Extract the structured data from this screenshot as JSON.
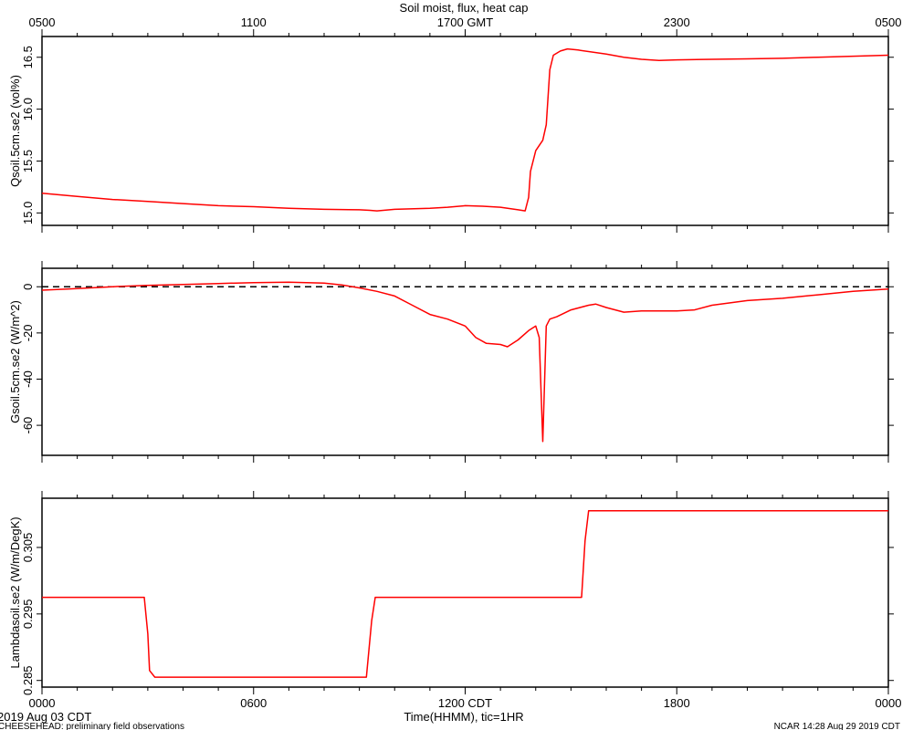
{
  "title": "Soil moist, flux, heat cap",
  "colors": {
    "series": "#ff0000",
    "axis": "#000000",
    "zero_line": "#000000"
  },
  "chart_data": {
    "type": "line",
    "x_top_ticks": [
      "0500",
      "1100",
      "1700 GMT",
      "2300",
      "0500"
    ],
    "x_bottom_ticks": [
      "0000",
      "0600",
      "1200 CDT",
      "1800",
      "0000"
    ],
    "x_label": "Time(HHMM), tic=1HR",
    "x_range_hours": [
      0,
      24
    ],
    "panels": [
      {
        "ylabel": "Qsoil.5cm.se2 (vol%)",
        "ylim": [
          14.88,
          16.7
        ],
        "yticks": [
          "15.0",
          "15.5",
          "16.0",
          "16.5"
        ],
        "ytick_values": [
          15.0,
          15.5,
          16.0,
          16.5
        ],
        "series": [
          {
            "values": [
              [
                0,
                15.19
              ],
              [
                1,
                15.16
              ],
              [
                2,
                15.13
              ],
              [
                3,
                15.11
              ],
              [
                4,
                15.09
              ],
              [
                5,
                15.07
              ],
              [
                6,
                15.06
              ],
              [
                7,
                15.045
              ],
              [
                8,
                15.035
              ],
              [
                9,
                15.03
              ],
              [
                9.3,
                15.025
              ],
              [
                9.5,
                15.02
              ],
              [
                10,
                15.035
              ],
              [
                11,
                15.045
              ],
              [
                11.5,
                15.055
              ],
              [
                12,
                15.07
              ],
              [
                12.5,
                15.065
              ],
              [
                13,
                15.055
              ],
              [
                13.5,
                15.03
              ],
              [
                13.7,
                15.02
              ],
              [
                13.8,
                15.15
              ],
              [
                13.85,
                15.4
              ],
              [
                14,
                15.6
              ],
              [
                14.2,
                15.7
              ],
              [
                14.3,
                15.85
              ],
              [
                14.4,
                16.38
              ],
              [
                14.5,
                16.52
              ],
              [
                14.7,
                16.56
              ],
              [
                14.9,
                16.58
              ],
              [
                15.2,
                16.57
              ],
              [
                16,
                16.53
              ],
              [
                16.5,
                16.5
              ],
              [
                17,
                16.48
              ],
              [
                17.5,
                16.47
              ],
              [
                18,
                16.475
              ],
              [
                19,
                16.48
              ],
              [
                20,
                16.485
              ],
              [
                21,
                16.49
              ],
              [
                22,
                16.5
              ],
              [
                23,
                16.51
              ],
              [
                24,
                16.52
              ]
            ]
          }
        ]
      },
      {
        "ylabel": "Gsoil.5cm.se2 (W/m^2)",
        "ylim": [
          -73,
          8
        ],
        "yticks": [
          "0",
          "-20",
          "-40",
          "-60"
        ],
        "ytick_values": [
          0,
          -20,
          -40,
          -60
        ],
        "zero_line": true,
        "series": [
          {
            "values": [
              [
                0,
                -1.5
              ],
              [
                1,
                -0.8
              ],
              [
                2,
                0
              ],
              [
                3,
                0.6
              ],
              [
                4,
                1.0
              ],
              [
                5,
                1.4
              ],
              [
                6,
                1.8
              ],
              [
                7,
                2.0
              ],
              [
                8,
                1.6
              ],
              [
                8.5,
                0.8
              ],
              [
                9,
                -0.5
              ],
              [
                9.5,
                -2
              ],
              [
                10,
                -4
              ],
              [
                10.5,
                -8
              ],
              [
                11,
                -12
              ],
              [
                11.5,
                -14
              ],
              [
                12,
                -17
              ],
              [
                12.3,
                -22
              ],
              [
                12.6,
                -24.5
              ],
              [
                13,
                -25
              ],
              [
                13.2,
                -26
              ],
              [
                13.5,
                -23
              ],
              [
                13.8,
                -19
              ],
              [
                14,
                -17
              ],
              [
                14.1,
                -22
              ],
              [
                14.2,
                -67
              ],
              [
                14.3,
                -17
              ],
              [
                14.4,
                -14
              ],
              [
                14.6,
                -13
              ],
              [
                15,
                -10
              ],
              [
                15.5,
                -8
              ],
              [
                15.7,
                -7.5
              ],
              [
                16,
                -9
              ],
              [
                16.5,
                -11
              ],
              [
                17,
                -10.5
              ],
              [
                18,
                -10.5
              ],
              [
                18.5,
                -10
              ],
              [
                19,
                -8
              ],
              [
                20,
                -6
              ],
              [
                21,
                -5
              ],
              [
                22,
                -3.5
              ],
              [
                23,
                -2
              ],
              [
                24,
                -1
              ]
            ]
          }
        ]
      },
      {
        "ylabel": "Lambdasoil.se2 (W/m/DegK)",
        "ylim": [
          0.284,
          0.3124
        ],
        "yticks": [
          "0.285",
          "0.295",
          "0.305"
        ],
        "ytick_values": [
          0.285,
          0.295,
          0.305
        ],
        "series": [
          {
            "values": [
              [
                0,
                0.2975
              ],
              [
                2.9,
                0.2975
              ],
              [
                3.0,
                0.292
              ],
              [
                3.05,
                0.2865
              ],
              [
                3.2,
                0.2855
              ],
              [
                9.2,
                0.2855
              ],
              [
                9.35,
                0.294
              ],
              [
                9.45,
                0.2975
              ],
              [
                15.3,
                0.2975
              ],
              [
                15.4,
                0.306
              ],
              [
                15.5,
                0.3105
              ],
              [
                24,
                0.3105
              ]
            ]
          }
        ]
      }
    ]
  },
  "footer": {
    "start_date": "2019 Aug 03 CDT",
    "project_note": "CHEESEHEAD: preliminary field observations",
    "stamp": "NCAR 14:28 Aug 29 2019 CDT"
  }
}
